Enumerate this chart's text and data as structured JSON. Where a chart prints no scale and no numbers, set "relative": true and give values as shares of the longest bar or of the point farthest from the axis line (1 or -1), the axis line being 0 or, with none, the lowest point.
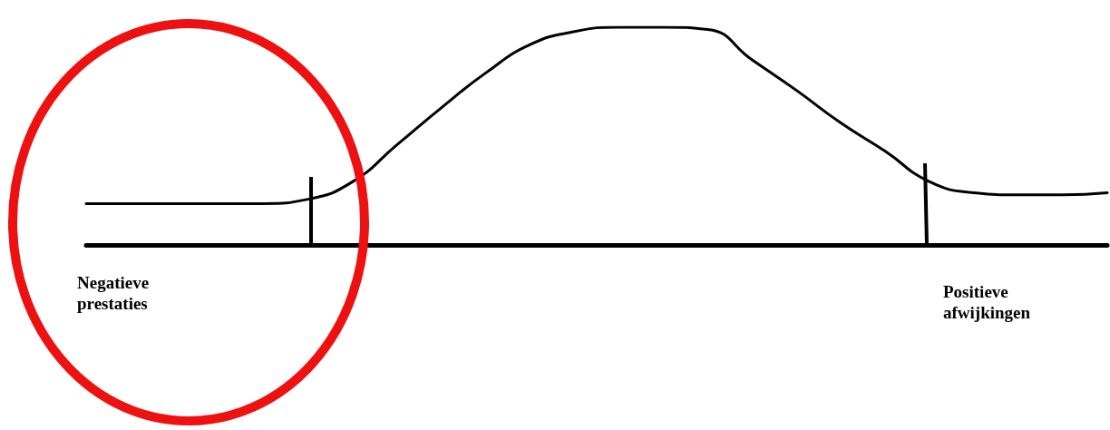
{
  "chart_data": {
    "type": "line",
    "relative": true,
    "categories": [
      null,
      null,
      null,
      null,
      null,
      null,
      null,
      null,
      null,
      null,
      null,
      null,
      null,
      null,
      null,
      null,
      null,
      null,
      null,
      null,
      null,
      null,
      null,
      null
    ],
    "series": [
      {
        "color": "#000000",
        "values": [
          0.19,
          0.19,
          0.19,
          0.19,
          0.19,
          0.21,
          0.29,
          0.46,
          0.63,
          0.79,
          0.92,
          0.98,
          1,
          1,
          0.99,
          0.85,
          0.71,
          0.56,
          0.43,
          0.29,
          0.24,
          0.23,
          0.23,
          0.24
        ]
      }
    ],
    "annotations": [
      "Negatieve prestaties",
      "Positieve afwijkingen"
    ],
    "marker": "none",
    "line_style": "solid",
    "grid": false
  }
}
